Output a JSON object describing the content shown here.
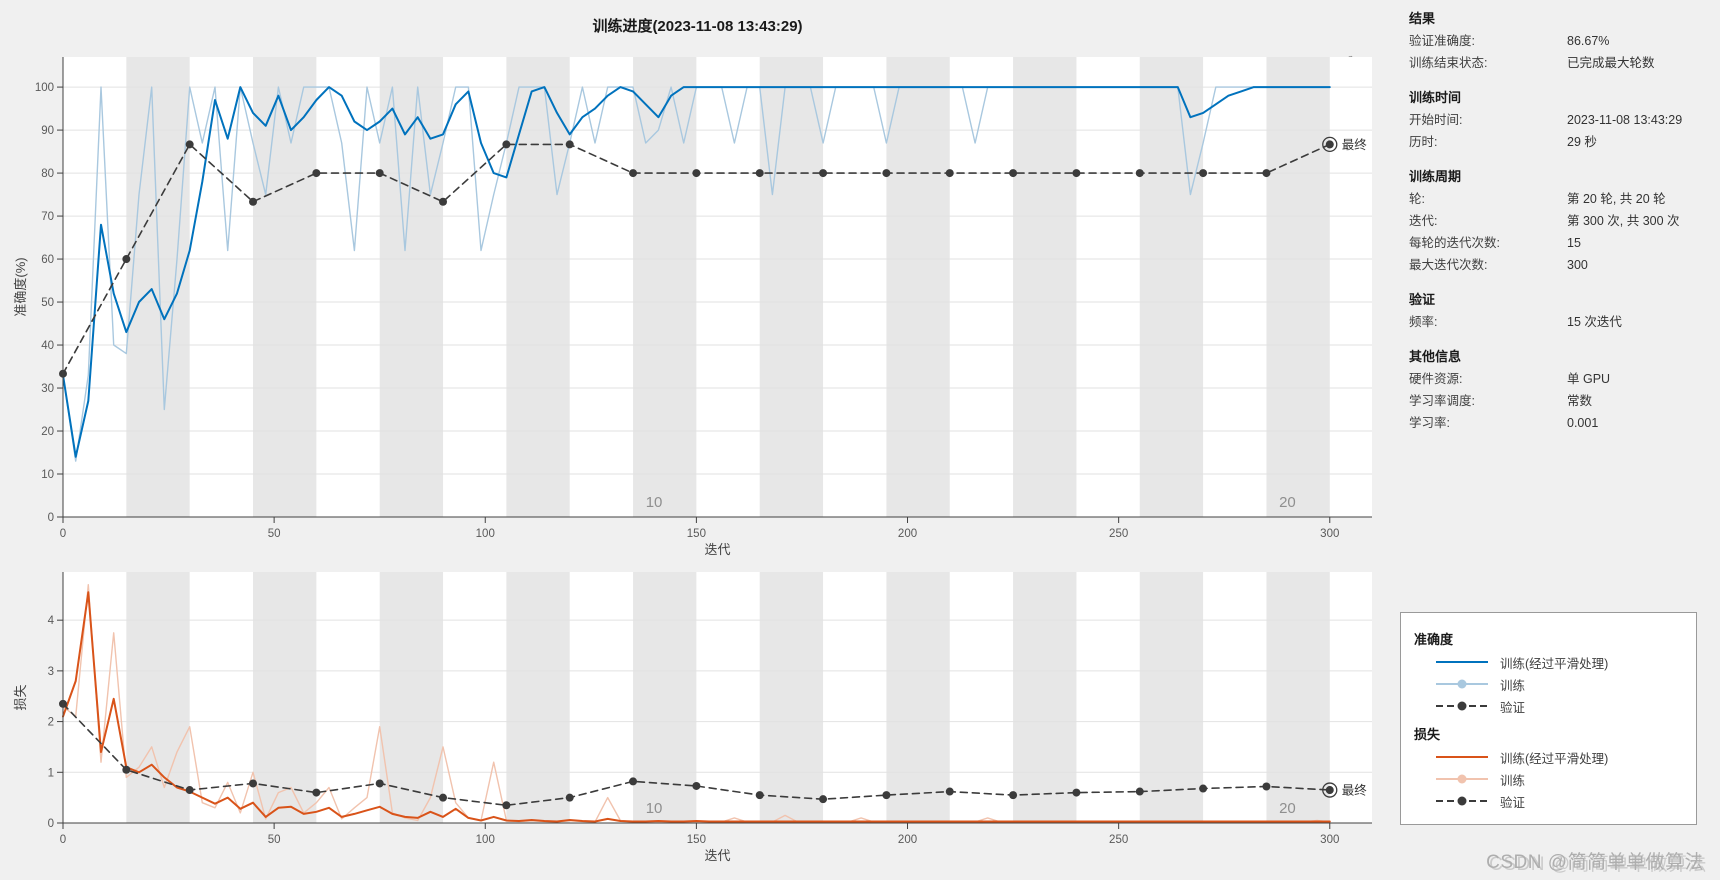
{
  "window": {
    "title": "训练进度(2023-11-08 13:43:29)"
  },
  "watermark": "CSDN @简简单单做算法",
  "panel": {
    "sections": [
      {
        "title": "结果",
        "rows": [
          {
            "label": "验证准确度:",
            "value": "86.67%"
          },
          {
            "label": "训练结束状态:",
            "value": "已完成最大轮数"
          }
        ]
      },
      {
        "title": "训练时间",
        "rows": [
          {
            "label": "开始时间:",
            "value": "2023-11-08 13:43:29"
          },
          {
            "label": "历时:",
            "value": "29 秒"
          }
        ]
      },
      {
        "title": "训练周期",
        "rows": [
          {
            "label": "轮:",
            "value": "第 20 轮, 共 20 轮"
          },
          {
            "label": "迭代:",
            "value": "第 300 次, 共 300 次"
          },
          {
            "label": "每轮的迭代次数:",
            "value": "15"
          },
          {
            "label": "最大迭代次数:",
            "value": "300"
          }
        ]
      },
      {
        "title": "验证",
        "rows": [
          {
            "label": "频率:",
            "value": "15 次迭代"
          }
        ]
      },
      {
        "title": "其他信息",
        "rows": [
          {
            "label": "硬件资源:",
            "value": "单 GPU"
          },
          {
            "label": "学习率调度:",
            "value": "常数"
          },
          {
            "label": "学习率:",
            "value": "0.001"
          }
        ]
      }
    ]
  },
  "legend": {
    "groups": [
      {
        "title": "准确度",
        "entries": [
          {
            "label": "训练(经过平滑处理)",
            "style": "solid",
            "color": "#0072bd"
          },
          {
            "label": "训练",
            "style": "raw",
            "color": "#a9c8df"
          },
          {
            "label": "验证",
            "style": "dashed",
            "color": "#3b3b3b"
          }
        ]
      },
      {
        "title": "损失",
        "entries": [
          {
            "label": "训练(经过平滑处理)",
            "style": "solid",
            "color": "#d95319"
          },
          {
            "label": "训练",
            "style": "raw",
            "color": "#f1c3ae"
          },
          {
            "label": "验证",
            "style": "dashed",
            "color": "#3b3b3b"
          }
        ]
      }
    ]
  },
  "chart_data": [
    {
      "id": "accuracy",
      "type": "line",
      "xlabel": "迭代",
      "ylabel": "准确度(%)",
      "xlim": [
        0,
        310
      ],
      "ylim": [
        0,
        107
      ],
      "xticks": [
        0,
        50,
        100,
        150,
        200,
        250,
        300
      ],
      "yticks": [
        0,
        10,
        20,
        30,
        40,
        50,
        60,
        70,
        80,
        90,
        100
      ],
      "grid": true,
      "epochs": {
        "count": 20,
        "iterations_per_epoch": 15,
        "band_color": "#e7e7e7",
        "labels": [
          {
            "epoch": "10",
            "x": 138
          },
          {
            "epoch": "20",
            "x": 288
          }
        ]
      },
      "final": {
        "x": 300,
        "y": 86.67,
        "label": "最终"
      },
      "series": [
        {
          "id": "train-raw",
          "name": "训练",
          "color": "#a9c8df",
          "width": 1.4,
          "x_step": 3,
          "y": [
            33,
            13,
            33,
            100,
            40,
            38,
            75,
            100,
            25,
            60,
            100,
            87,
            100,
            62,
            100,
            87,
            75,
            100,
            87,
            100,
            100,
            100,
            87,
            62,
            100,
            87,
            100,
            62,
            100,
            75,
            87,
            100,
            100,
            62,
            75,
            87,
            100,
            100,
            100,
            75,
            87,
            100,
            87,
            100,
            100,
            100,
            87,
            90,
            100,
            87,
            100,
            100,
            100,
            87,
            100,
            100,
            75,
            100,
            100,
            100,
            87,
            100,
            100,
            100,
            100,
            87,
            100,
            100,
            100,
            100,
            100,
            100,
            87,
            100,
            100,
            100,
            100,
            100,
            100,
            100,
            100,
            100,
            100,
            100,
            100,
            100,
            100,
            100,
            100,
            75,
            87,
            100,
            100,
            100,
            100,
            100,
            100,
            100,
            100,
            100,
            100
          ]
        },
        {
          "id": "train-smoothed",
          "name": "训练(经过平滑处理)",
          "color": "#0072bd",
          "width": 2,
          "x_step": 3,
          "y": [
            33,
            14,
            27,
            68,
            52,
            43,
            50,
            53,
            46,
            52,
            62,
            78,
            97,
            88,
            100,
            94,
            91,
            98,
            90,
            93,
            97,
            100,
            98,
            92,
            90,
            92,
            95,
            89,
            93,
            88,
            89,
            96,
            99,
            87,
            80,
            79,
            89,
            99,
            100,
            94,
            89,
            93,
            95,
            98,
            100,
            99,
            96,
            93,
            98,
            100,
            100,
            100,
            100,
            100,
            100,
            100,
            100,
            100,
            100,
            100,
            100,
            100,
            100,
            100,
            100,
            100,
            100,
            100,
            100,
            100,
            100,
            100,
            100,
            100,
            100,
            100,
            100,
            100,
            100,
            100,
            100,
            100,
            100,
            100,
            100,
            100,
            100,
            100,
            100,
            93,
            94,
            96,
            98,
            99,
            100,
            100,
            100,
            100,
            100,
            100,
            100
          ]
        },
        {
          "id": "validation",
          "name": "验证",
          "color": "#3b3b3b",
          "width": 1.6,
          "x_step": 15,
          "dashed": true,
          "markers": true,
          "y": [
            33.33,
            60,
            86.67,
            73.33,
            80,
            80,
            73.33,
            86.67,
            86.67,
            80,
            80,
            80,
            80,
            80,
            80,
            80,
            80,
            80,
            80,
            80,
            86.67
          ]
        }
      ]
    },
    {
      "id": "loss",
      "type": "line",
      "xlabel": "迭代",
      "ylabel": "损失",
      "xlim": [
        0,
        310
      ],
      "ylim": [
        0,
        4.95
      ],
      "xticks": [
        0,
        50,
        100,
        150,
        200,
        250,
        300
      ],
      "yticks": [
        0,
        1,
        2,
        3,
        4
      ],
      "grid": true,
      "epochs": {
        "count": 20,
        "iterations_per_epoch": 15,
        "band_color": "#e7e7e7",
        "labels": [
          {
            "epoch": "10",
            "x": 138
          },
          {
            "epoch": "20",
            "x": 288
          }
        ]
      },
      "final": {
        "x": 300,
        "y": 0.65,
        "label": "最终"
      },
      "series": [
        {
          "id": "train-raw",
          "name": "训练",
          "color": "#f1c3ae",
          "width": 1.4,
          "x_step": 3,
          "y": [
            2.3,
            2.1,
            4.7,
            1.2,
            3.75,
            0.9,
            1.1,
            1.5,
            0.7,
            1.4,
            1.9,
            0.4,
            0.3,
            0.8,
            0.2,
            1.0,
            0.08,
            0.6,
            0.7,
            0.2,
            0.4,
            0.7,
            0.08,
            0.3,
            0.5,
            1.9,
            0.2,
            0.1,
            0.05,
            0.5,
            1.5,
            0.4,
            0.1,
            0.05,
            1.2,
            0.05,
            0.03,
            0.05,
            0.03,
            0.02,
            0.05,
            0.03,
            0.02,
            0.5,
            0.05,
            0.02,
            0.03,
            0.02,
            0.03,
            0.02,
            0.03,
            0.02,
            0.02,
            0.1,
            0.02,
            0.02,
            0.02,
            0.15,
            0.02,
            0.02,
            0.02,
            0.02,
            0.02,
            0.1,
            0.02,
            0.02,
            0.02,
            0.02,
            0.02,
            0.02,
            0.02,
            0.02,
            0.02,
            0.1,
            0.02,
            0.02,
            0.02,
            0.02,
            0.02,
            0.02,
            0.02,
            0.02,
            0.02,
            0.02,
            0.02,
            0.02,
            0.02,
            0.02,
            0.02,
            0.02,
            0.02,
            0.02,
            0.02,
            0.02,
            0.02,
            0.02,
            0.02,
            0.02,
            0.02,
            0.05,
            0.02
          ]
        },
        {
          "id": "train-smoothed",
          "name": "训练(经过平滑处理)",
          "color": "#d95319",
          "width": 2,
          "x_step": 3,
          "y": [
            2.1,
            2.8,
            4.55,
            1.4,
            2.45,
            1.1,
            1.0,
            1.15,
            0.9,
            0.7,
            0.62,
            0.5,
            0.38,
            0.5,
            0.28,
            0.4,
            0.12,
            0.3,
            0.32,
            0.18,
            0.22,
            0.3,
            0.12,
            0.18,
            0.25,
            0.32,
            0.18,
            0.12,
            0.1,
            0.22,
            0.12,
            0.28,
            0.1,
            0.05,
            0.12,
            0.05,
            0.04,
            0.06,
            0.04,
            0.03,
            0.06,
            0.04,
            0.03,
            0.08,
            0.04,
            0.03,
            0.03,
            0.04,
            0.03,
            0.03,
            0.04,
            0.03,
            0.03,
            0.03,
            0.03,
            0.03,
            0.03,
            0.03,
            0.03,
            0.03,
            0.03,
            0.03,
            0.03,
            0.03,
            0.03,
            0.03,
            0.03,
            0.03,
            0.03,
            0.03,
            0.03,
            0.03,
            0.03,
            0.03,
            0.03,
            0.03,
            0.03,
            0.03,
            0.03,
            0.03,
            0.03,
            0.03,
            0.03,
            0.03,
            0.03,
            0.03,
            0.03,
            0.03,
            0.03,
            0.03,
            0.03,
            0.03,
            0.03,
            0.03,
            0.03,
            0.03,
            0.03,
            0.03,
            0.03,
            0.03,
            0.03
          ]
        },
        {
          "id": "validation",
          "name": "验证",
          "color": "#3b3b3b",
          "width": 1.6,
          "x_step": 15,
          "dashed": true,
          "markers": true,
          "y": [
            2.35,
            1.05,
            0.65,
            0.78,
            0.6,
            0.78,
            0.5,
            0.35,
            0.5,
            0.82,
            0.73,
            0.55,
            0.47,
            0.55,
            0.62,
            0.55,
            0.6,
            0.62,
            0.68,
            0.72,
            0.65
          ]
        }
      ]
    }
  ]
}
